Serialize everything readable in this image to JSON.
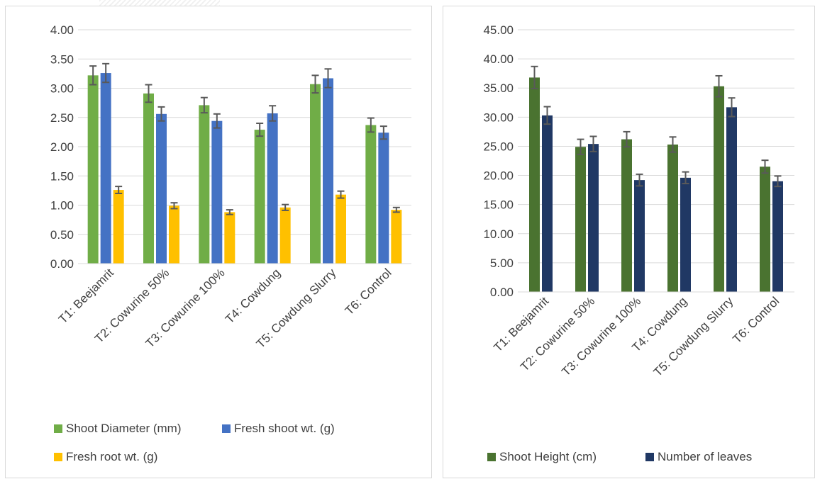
{
  "chart_data": [
    {
      "type": "bar",
      "categories": [
        "T1: Beejamrit",
        "T2: Cowurine 50%",
        "T3: Cowurine 100%",
        "T4: Cowdung",
        "T5: Cowdung Slurry",
        "T6: Control"
      ],
      "ylim": [
        0,
        4
      ],
      "yticks": [
        "0.00",
        "0.50",
        "1.00",
        "1.50",
        "2.00",
        "2.50",
        "3.00",
        "3.50",
        "4.00"
      ],
      "grid": true,
      "legend_position": "bottom",
      "error_bars": true,
      "series": [
        {
          "name": "Shoot Diameter (mm)",
          "color": "#70ad47",
          "values": [
            3.22,
            2.91,
            2.71,
            2.29,
            3.07,
            2.37
          ],
          "errors": [
            0.16,
            0.15,
            0.13,
            0.11,
            0.15,
            0.12
          ]
        },
        {
          "name": "Fresh shoot wt. (g)",
          "color": "#4472c4",
          "values": [
            3.26,
            2.56,
            2.44,
            2.57,
            3.17,
            2.24
          ],
          "errors": [
            0.16,
            0.12,
            0.12,
            0.13,
            0.16,
            0.11
          ]
        },
        {
          "name": "Fresh root wt. (g)",
          "color": "#ffc000",
          "values": [
            1.26,
            0.99,
            0.88,
            0.96,
            1.18,
            0.92
          ],
          "errors": [
            0.06,
            0.05,
            0.04,
            0.05,
            0.06,
            0.04
          ]
        }
      ]
    },
    {
      "type": "bar",
      "categories": [
        "T1: Beejamrit",
        "T2: Cowurine 50%",
        "T3: Cowurine 100%",
        "T4: Cowdung",
        "T5: Cowdung Slurry",
        "T6: Control"
      ],
      "ylim": [
        0,
        45
      ],
      "yticks": [
        "0.00",
        "5.00",
        "10.00",
        "15.00",
        "20.00",
        "25.00",
        "30.00",
        "35.00",
        "40.00",
        "45.00"
      ],
      "grid": true,
      "legend_position": "bottom",
      "error_bars": true,
      "series": [
        {
          "name": "Shoot Height (cm)",
          "color": "#4a7330",
          "values": [
            36.8,
            24.9,
            26.2,
            25.3,
            35.3,
            21.5
          ],
          "errors": [
            1.9,
            1.3,
            1.3,
            1.3,
            1.8,
            1.1
          ]
        },
        {
          "name": "Number of leaves",
          "color": "#203864",
          "values": [
            30.3,
            25.4,
            19.2,
            19.6,
            31.7,
            19.0
          ],
          "errors": [
            1.5,
            1.3,
            1.0,
            1.0,
            1.6,
            0.9
          ]
        }
      ]
    }
  ]
}
